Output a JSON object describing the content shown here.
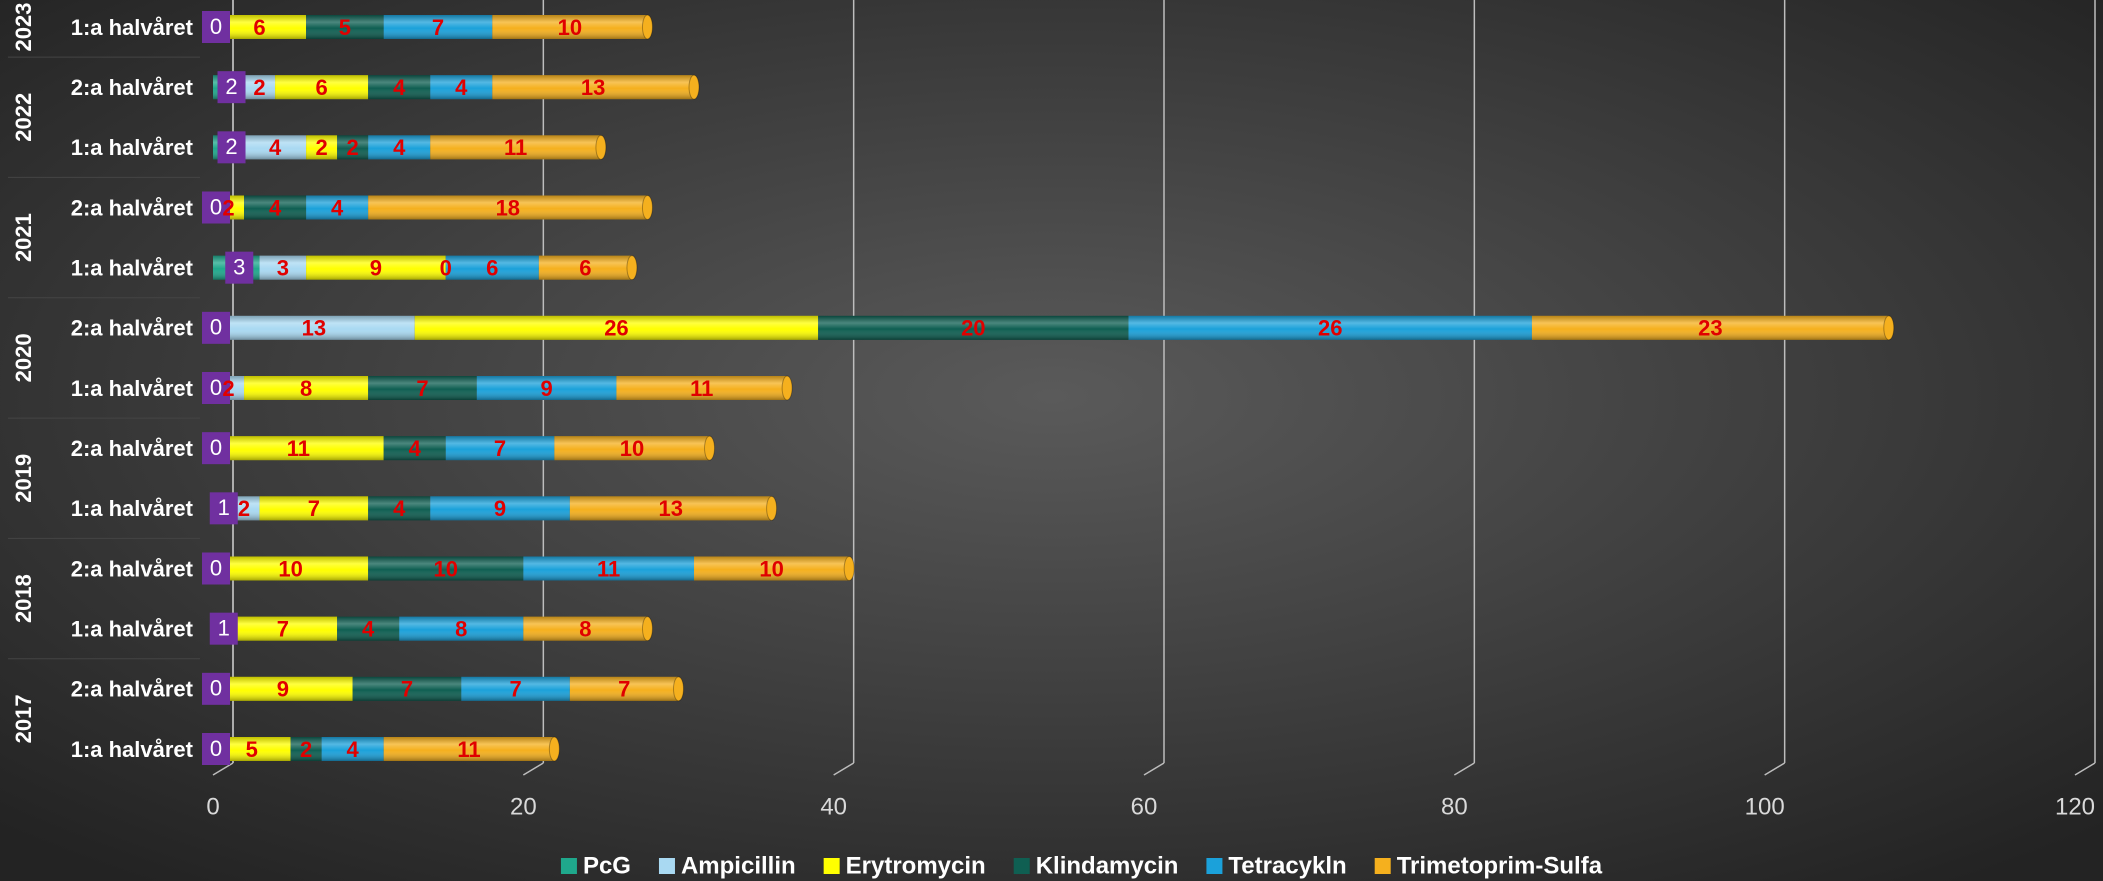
{
  "chart_data": {
    "type": "bar",
    "orientation": "horizontal",
    "stacked": true,
    "categories": [
      "1:a halvåret",
      "2:a halvåret",
      "1:a halvåret",
      "2:a halvåret",
      "1:a halvåret",
      "2:a halvåret",
      "1:a halvåret",
      "2:a halvåret",
      "1:a halvåret",
      "2:a halvåret",
      "1:a halvåret",
      "2:a halvåret",
      "1:a halvåret"
    ],
    "years": [
      "2017",
      "2018",
      "2019",
      "2020",
      "2021",
      "2022",
      "2023"
    ],
    "series": [
      {
        "name": "PcG",
        "color": "#1fa88c",
        "values": [
          0,
          0,
          1,
          0,
          1,
          0,
          0,
          0,
          3,
          0,
          2,
          2,
          0
        ]
      },
      {
        "name": "Ampicillin",
        "color": "#a9d9f2",
        "values": [
          null,
          null,
          null,
          null,
          2,
          null,
          2,
          13,
          3,
          null,
          4,
          2,
          null
        ]
      },
      {
        "name": "Erytromycin",
        "color": "#ffff00",
        "values": [
          5,
          9,
          7,
          10,
          7,
          11,
          8,
          26,
          9,
          2,
          2,
          6,
          6
        ]
      },
      {
        "name": "Klindamycin",
        "color": "#0f5f52",
        "values": [
          2,
          7,
          4,
          10,
          4,
          4,
          7,
          20,
          0,
          4,
          2,
          4,
          5
        ]
      },
      {
        "name": "Tetracykln",
        "color": "#1ba1da",
        "values": [
          4,
          7,
          8,
          11,
          9,
          7,
          9,
          26,
          6,
          4,
          4,
          4,
          7
        ]
      },
      {
        "name": "Trimetoprim-Sulfa",
        "color": "#f5b01e",
        "values": [
          11,
          7,
          8,
          10,
          13,
          10,
          11,
          23,
          6,
          18,
          11,
          13,
          10
        ]
      }
    ],
    "xlim": [
      0,
      120
    ],
    "xticks": [
      0,
      20,
      40,
      60,
      80,
      100,
      120
    ],
    "grid": true,
    "legend": "bottom"
  }
}
